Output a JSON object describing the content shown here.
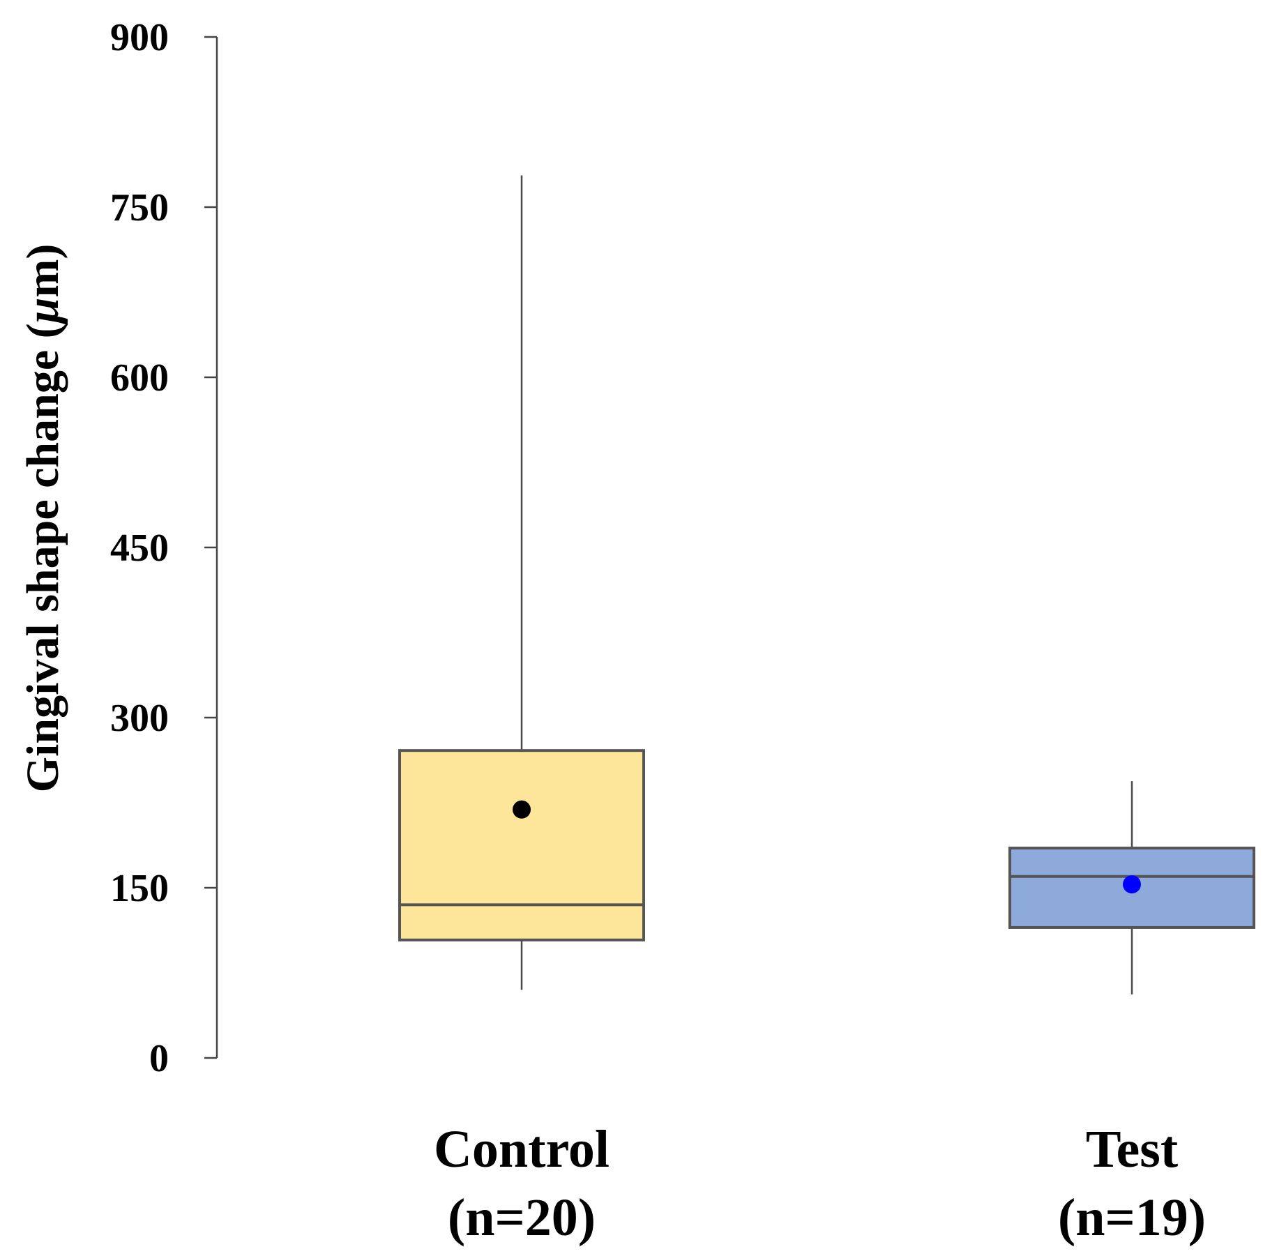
{
  "chart_data": {
    "type": "box",
    "title": "",
    "xlabel": "",
    "ylabel": "Gingival shape change (μm)",
    "ylabel_parts": {
      "prefix": "Gingival shape change (",
      "unit_greek": "μ",
      "suffix": "m)"
    },
    "ylim": [
      0,
      900
    ],
    "yticks": [
      "0",
      "150",
      "300",
      "450",
      "600",
      "750",
      "900"
    ],
    "grid": false,
    "legend": "none",
    "categories": [
      {
        "name": "Control",
        "n_label": "(n=20)"
      },
      {
        "name": "Test",
        "n_label": "(n=19)"
      }
    ],
    "series": [
      {
        "name": "Control",
        "whisker_low": 60,
        "q1": 104,
        "median": 135,
        "q3": 271,
        "whisker_high": 778,
        "mean": 219,
        "box_color": "#FDE699",
        "mean_color": "#000000"
      },
      {
        "name": "Test",
        "whisker_low": 56,
        "q1": 115,
        "median": 160,
        "q3": 185,
        "whisker_high": 244,
        "mean": 153,
        "box_color": "#8EAADB",
        "mean_color": "#0000FF"
      }
    ]
  }
}
